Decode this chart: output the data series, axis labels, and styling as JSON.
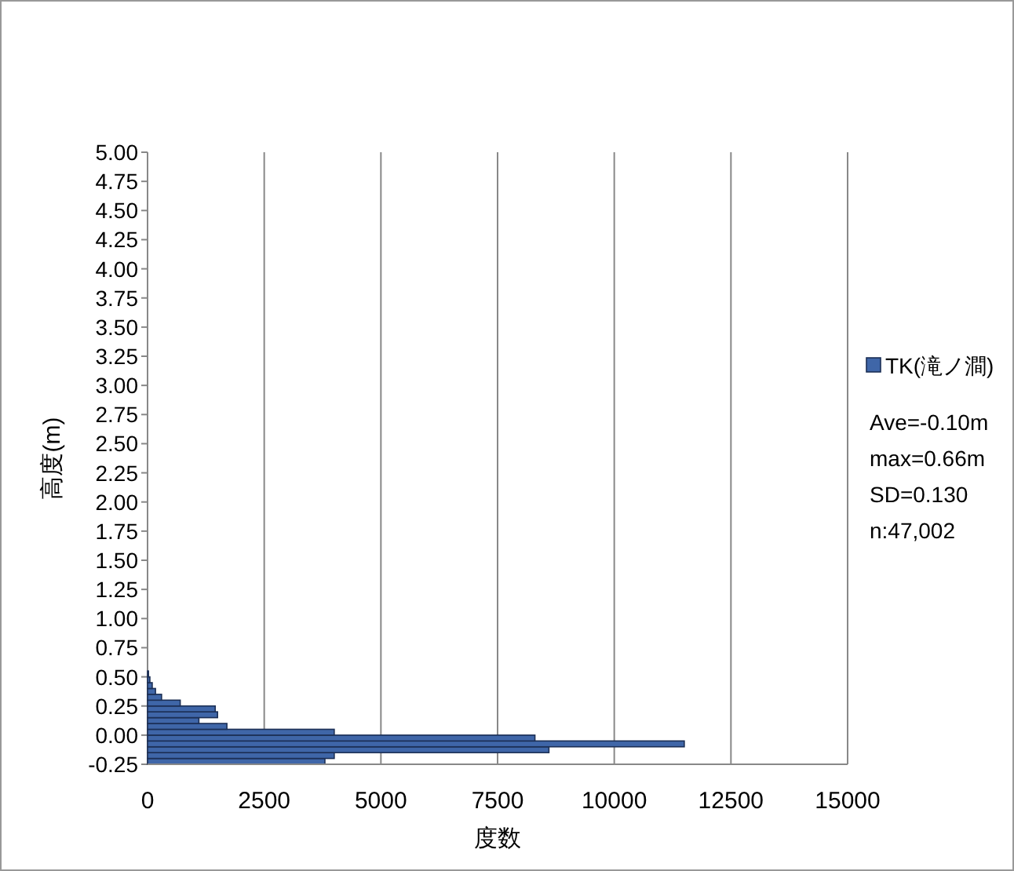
{
  "chart_data": {
    "type": "histogram",
    "orientation": "horizontal",
    "xlabel": "度数",
    "ylabel": "高度(m)",
    "bins": [
      -0.25,
      -0.2,
      -0.15,
      -0.1,
      -0.05,
      0,
      0.05,
      0.1,
      0.15,
      0.2,
      0.25,
      0.3,
      0.35,
      0.4,
      0.45,
      0.5,
      0.55
    ],
    "series": [
      {
        "name": "TK(滝ノ澗)",
        "color": "#3f66a8",
        "values": [
          3800,
          4000,
          8600,
          11500,
          8300,
          4000,
          1700,
          1100,
          1500,
          1450,
          700,
          300,
          170,
          100,
          50,
          20
        ]
      }
    ],
    "xlim": [
      0,
      15000
    ],
    "xticks": [
      0,
      2500,
      5000,
      7500,
      10000,
      12500,
      15000
    ],
    "ylim": [
      -0.25,
      5.0
    ],
    "yticks": [
      {
        "value": -0.25,
        "label": "-0.25"
      },
      {
        "value": 0,
        "label": "0.00"
      },
      {
        "value": 0.25,
        "label": "0.25"
      },
      {
        "value": 0.5,
        "label": "0.50"
      },
      {
        "value": 0.75,
        "label": "0.75"
      },
      {
        "value": 1,
        "label": "1.00"
      },
      {
        "value": 1.25,
        "label": "1.25"
      },
      {
        "value": 1.5,
        "label": "1.50"
      },
      {
        "value": 1.75,
        "label": "1.75"
      },
      {
        "value": 2,
        "label": "2.00"
      },
      {
        "value": 2.25,
        "label": "2.25"
      },
      {
        "value": 2.5,
        "label": "2.50"
      },
      {
        "value": 2.75,
        "label": "2.75"
      },
      {
        "value": 3,
        "label": "3.00"
      },
      {
        "value": 3.25,
        "label": "3.25"
      },
      {
        "value": 3.5,
        "label": "3.50"
      },
      {
        "value": 3.75,
        "label": "3.75"
      },
      {
        "value": 4,
        "label": "4.00"
      },
      {
        "value": 4.25,
        "label": "4.25"
      },
      {
        "value": 4.5,
        "label": "4.50"
      },
      {
        "value": 4.75,
        "label": "4.75"
      },
      {
        "value": 5,
        "label": "5.00"
      }
    ],
    "grid": "x",
    "legend": "right",
    "annotations": [
      "Ave=-0.10m",
      "max=0.66m",
      "SD=0.130",
      "n:47,002"
    ]
  }
}
